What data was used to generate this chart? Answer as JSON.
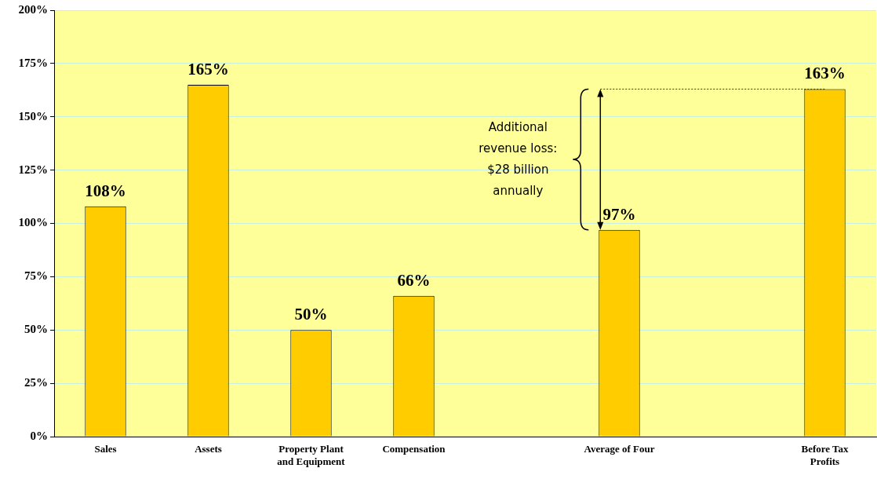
{
  "chart_data": {
    "type": "bar",
    "categories": [
      "Sales",
      "Assets",
      "Property Plant and Equipment",
      "Compensation",
      null,
      "Average of Four",
      null,
      "Before Tax Profits"
    ],
    "values": [
      108,
      165,
      50,
      66,
      null,
      97,
      null,
      163
    ],
    "value_labels": [
      "108%",
      "165%",
      "50%",
      "66%",
      null,
      "97%",
      null,
      "163%"
    ],
    "color": "#ffcc00",
    "ylim": [
      0,
      200
    ],
    "yticks": [
      {
        "value": 0,
        "label": "0%"
      },
      {
        "value": 25,
        "label": "25%"
      },
      {
        "value": 50,
        "label": "50%"
      },
      {
        "value": 75,
        "label": "75%"
      },
      {
        "value": 100,
        "label": "100%"
      },
      {
        "value": 125,
        "label": "125%"
      },
      {
        "value": 150,
        "label": "150%"
      },
      {
        "value": 175,
        "label": "175%"
      },
      {
        "value": 200,
        "label": "200%"
      }
    ],
    "grid": "y",
    "legend": false,
    "annotations": [
      "Additional revenue loss: $28 billion annually"
    ]
  }
}
